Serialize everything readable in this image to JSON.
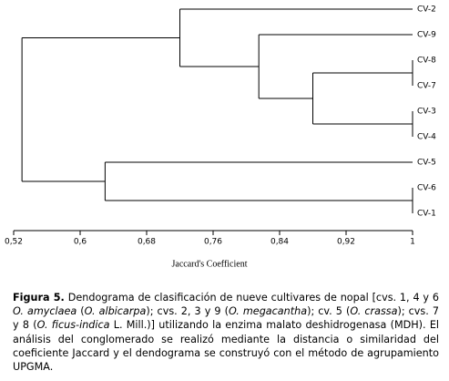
{
  "chart_data": {
    "type": "dendrogram",
    "xlabel": "Jaccard's Coefficient",
    "xlim": [
      0.52,
      1
    ],
    "xticks": [
      {
        "value": 0.52,
        "label": "0,52"
      },
      {
        "value": 0.6,
        "label": "0,6"
      },
      {
        "value": 0.68,
        "label": "0,68"
      },
      {
        "value": 0.76,
        "label": "0,76"
      },
      {
        "value": 0.84,
        "label": "0,84"
      },
      {
        "value": 0.92,
        "label": "0,92"
      },
      1
    ],
    "color": "#000000",
    "tree": {
      "height": 0.53,
      "children": [
        {
          "height": 0.72,
          "children": [
            "CV-2",
            {
              "height": 0.815,
              "children": [
                "CV-9",
                {
                  "height": 0.88,
                  "children": [
                    {
                      "height": 1,
                      "children": [
                        "CV-8",
                        "CV-7"
                      ]
                    },
                    {
                      "height": 1,
                      "children": [
                        "CV-3",
                        "CV-4"
                      ]
                    }
                  ]
                }
              ]
            }
          ]
        },
        {
          "height": 0.63,
          "children": [
            "CV-5",
            {
              "height": 1,
              "children": [
                "CV-6",
                "CV-1"
              ]
            }
          ]
        }
      ]
    }
  },
  "caption": {
    "label": "Figura 5.",
    "runs": [
      {
        "text": "Dendograma de clasificación de nueve cultivares de nopal [cvs. 1, 4 y 6 ",
        "italic": false
      },
      {
        "text": "O. amyclaea",
        "italic": true
      },
      {
        "text": " (",
        "italic": false
      },
      {
        "text": "O. albicarpa",
        "italic": true
      },
      {
        "text": "); cvs. 2, 3 y 9 (",
        "italic": false
      },
      {
        "text": "O. megacantha",
        "italic": true
      },
      {
        "text": "); cv. 5 (",
        "italic": false
      },
      {
        "text": "O. crassa",
        "italic": true
      },
      {
        "text": "); cvs. 7 y 8 (",
        "italic": false
      },
      {
        "text": "O. ficus-indica",
        "italic": true
      },
      {
        "text": " L. Mill.)] utilizando la enzima malato deshidrogenasa (MDH). El análisis del conglomerado se realizó mediante la distancia o similaridad del coeficiente Jaccard y el dendograma se construyó con el método de agrupamiento UPGMA.",
        "italic": false
      }
    ]
  }
}
